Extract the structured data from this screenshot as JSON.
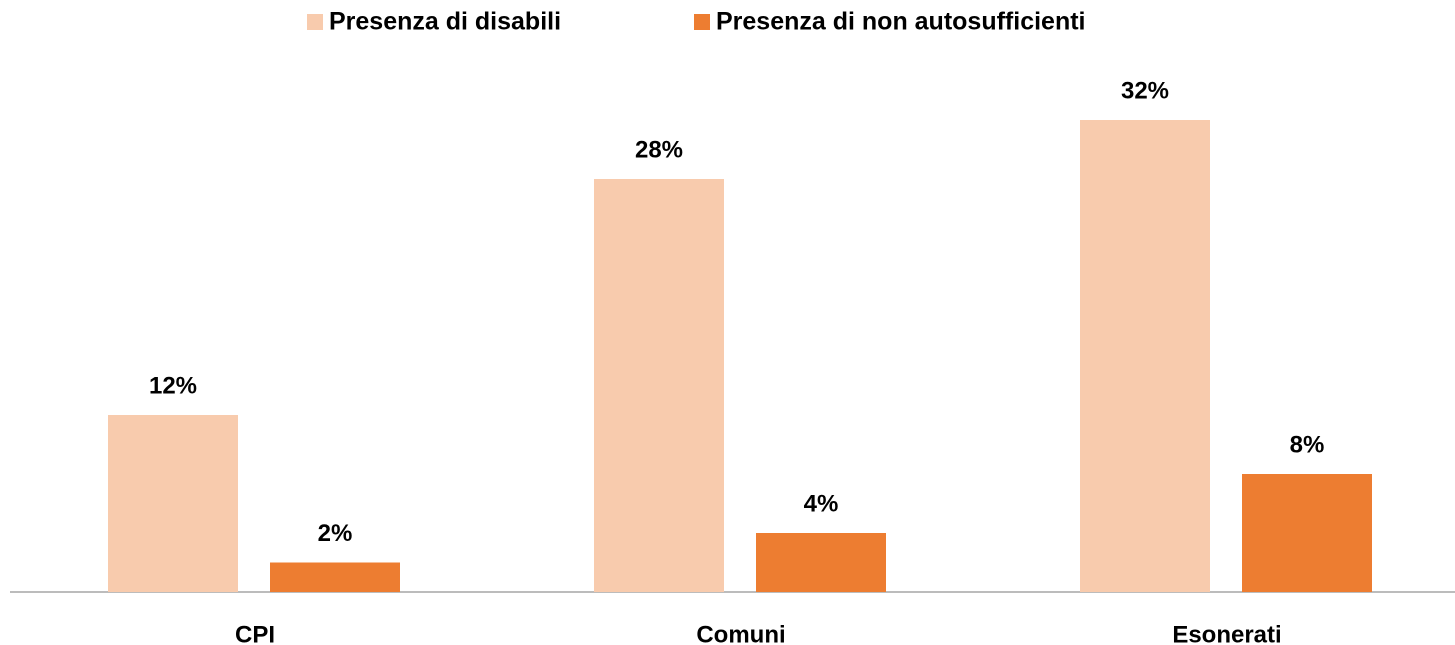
{
  "chart_data": {
    "type": "bar",
    "categories": [
      "CPI",
      "Comuni",
      "Esonerati"
    ],
    "series": [
      {
        "name": "Presenza di disabili",
        "color": "#f8cbad",
        "values": [
          12,
          28,
          32
        ],
        "value_labels": [
          "12%",
          "28%",
          "32%"
        ]
      },
      {
        "name": "Presenza di non autosufficienti",
        "color": "#ed7d31",
        "values": [
          2,
          4,
          8
        ],
        "value_labels": [
          "2%",
          "4%",
          "8%"
        ]
      }
    ],
    "legend": "top"
  }
}
